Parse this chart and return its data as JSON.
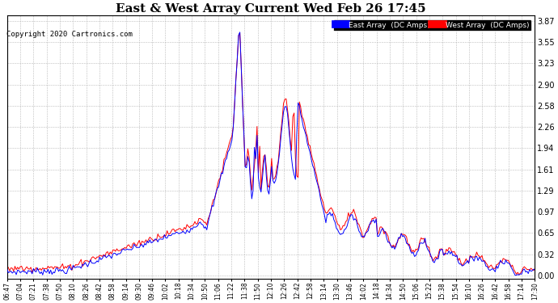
{
  "title": "East & West Array Current Wed Feb 26 17:45",
  "copyright": "Copyright 2020 Cartronics.com",
  "east_label": "East Array  (DC Amps)",
  "west_label": "West Array  (DC Amps)",
  "east_color": "#0000ff",
  "west_color": "#ff0000",
  "background_color": "#ffffff",
  "plot_bg_color": "#ffffff",
  "grid_color": "#bbbbbb",
  "yticks": [
    0.0,
    0.32,
    0.65,
    0.97,
    1.29,
    1.61,
    1.94,
    2.26,
    2.58,
    2.9,
    3.23,
    3.55,
    3.87
  ],
  "ylim": [
    -0.05,
    3.95
  ],
  "xtick_labels": [
    "06:47",
    "07:04",
    "07:21",
    "07:38",
    "07:50",
    "08:10",
    "08:26",
    "08:42",
    "08:58",
    "09:14",
    "09:30",
    "09:46",
    "10:02",
    "10:18",
    "10:34",
    "10:50",
    "11:06",
    "11:22",
    "11:38",
    "11:50",
    "12:10",
    "12:26",
    "12:42",
    "12:58",
    "13:14",
    "13:30",
    "13:46",
    "14:02",
    "14:18",
    "14:34",
    "14:50",
    "15:06",
    "15:22",
    "15:38",
    "15:54",
    "16:10",
    "16:26",
    "16:42",
    "16:58",
    "17:14",
    "17:30"
  ],
  "n_xtick_labels": 41,
  "total_minutes": 643,
  "figwidth": 6.9,
  "figheight": 3.75,
  "dpi": 100
}
